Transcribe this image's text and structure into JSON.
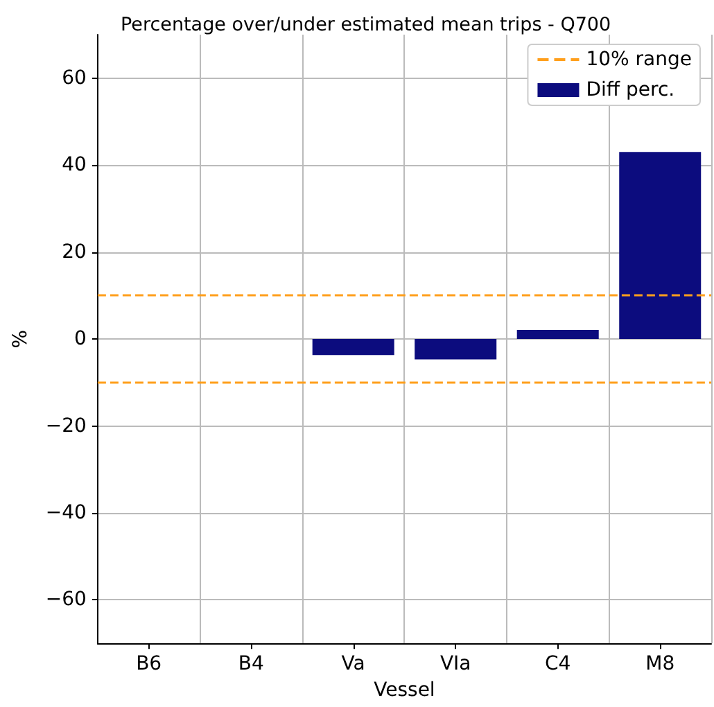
{
  "chart_data": {
    "type": "bar",
    "title": "Percentage over/under estimated mean trips - Q700",
    "xlabel": "Vessel",
    "ylabel": "%",
    "categories": [
      "B6",
      "B4",
      "Va",
      "VIa",
      "C4",
      "M8"
    ],
    "series": [
      {
        "name": "Diff perc.",
        "color": "#0c0c7e",
        "values": [
          0,
          0,
          -3.7,
          -4.7,
          2.1,
          43
        ]
      }
    ],
    "ylim": [
      -70,
      70
    ],
    "yticks": [
      -60,
      -40,
      -20,
      0,
      20,
      40,
      60
    ],
    "grid": true,
    "legend": "top right",
    "ref_lines": [
      {
        "axis": "y",
        "value": 10,
        "label": "10% range",
        "color": "#ff9f1c",
        "line_style": "dashed"
      },
      {
        "axis": "y",
        "value": -10,
        "label": null,
        "color": "#ff9f1c",
        "line_style": "dashed"
      }
    ]
  }
}
